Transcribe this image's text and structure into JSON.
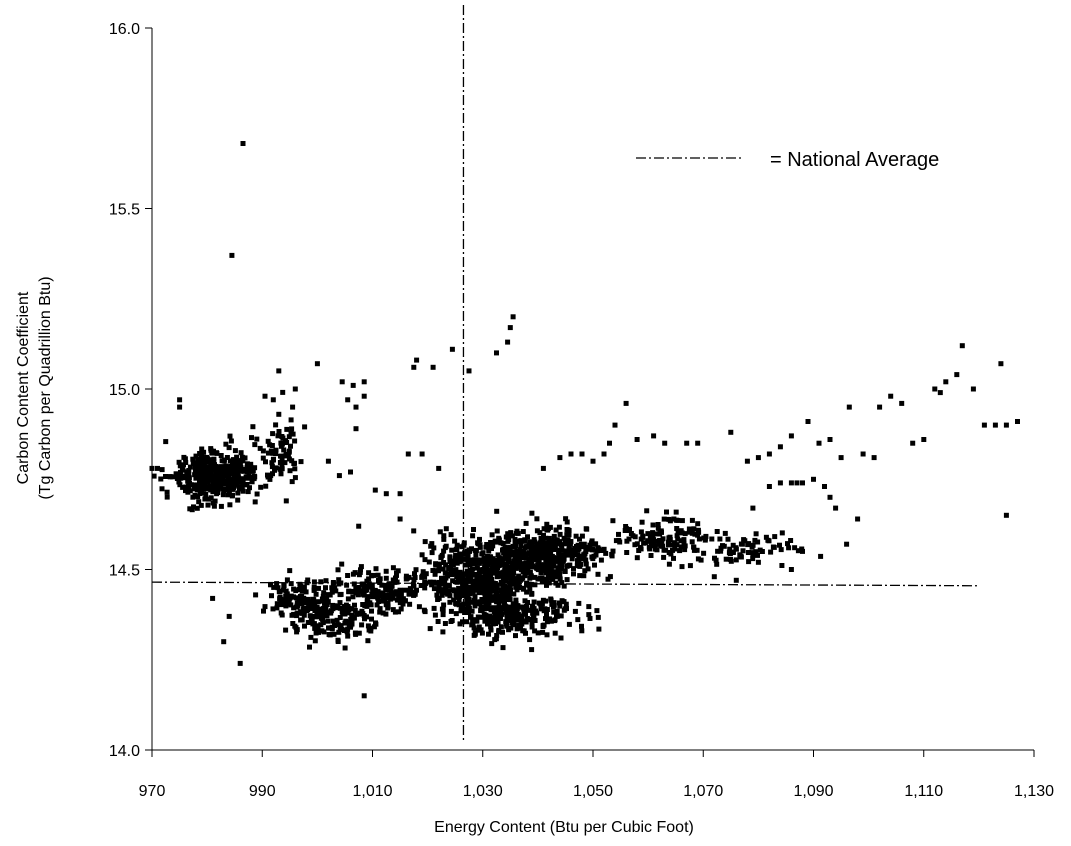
{
  "chart_data": {
    "type": "scatter",
    "xlabel": "Energy Content (Btu per Cubic Foot)",
    "ylabel": [
      "Carbon Content Coefficient",
      "(Tg Carbon per Quadrillion Btu)"
    ],
    "xlim": [
      970,
      1130
    ],
    "ylim": [
      14.0,
      16.0
    ],
    "x_ticks": [
      970,
      990,
      1010,
      1030,
      1050,
      1070,
      1090,
      1110,
      1130
    ],
    "x_tick_labels": [
      "970",
      "990",
      "1,010",
      "1,030",
      "1,050",
      "1,070",
      "1,090",
      "1,110",
      "1,130"
    ],
    "y_ticks": [
      14.0,
      14.5,
      15.0,
      15.5,
      16.0
    ],
    "y_tick_labels": [
      "14.0",
      "14.5",
      "15.0",
      "15.5",
      "16.0"
    ],
    "grid": false,
    "legend": {
      "position": "top-right",
      "entries": [
        {
          "label": "= National Average",
          "style": "dash-dot"
        }
      ]
    },
    "reference_lines": {
      "vertical_x": 1026.5,
      "horizontal": {
        "x_start": 970,
        "x_end": 1120,
        "y_start": 14.465,
        "y_end": 14.455
      }
    },
    "series": [
      {
        "marker": "square",
        "color": "#000000",
        "points": [
          [
            986.5,
            15.68
          ],
          [
            984.5,
            15.37
          ],
          [
            1035.5,
            15.2
          ],
          [
            1035,
            15.17
          ],
          [
            1034.5,
            15.13
          ],
          [
            1032.5,
            15.1
          ],
          [
            1024.5,
            15.11
          ],
          [
            1027.5,
            15.05
          ],
          [
            1017.5,
            15.06
          ],
          [
            1018,
            15.08
          ],
          [
            1021,
            15.06
          ],
          [
            1000,
            15.07
          ],
          [
            993,
            15.05
          ],
          [
            995.5,
            14.95
          ],
          [
            996,
            15.0
          ],
          [
            993,
            14.93
          ],
          [
            992,
            14.97
          ],
          [
            990.5,
            14.98
          ],
          [
            1004.5,
            15.02
          ],
          [
            1006.5,
            15.01
          ],
          [
            1008.5,
            15.02
          ],
          [
            1008.5,
            14.98
          ],
          [
            1005.5,
            14.97
          ],
          [
            1007,
            14.95
          ],
          [
            1007,
            14.89
          ],
          [
            975,
            14.97
          ],
          [
            975,
            14.95
          ],
          [
            1002,
            14.8
          ],
          [
            1004,
            14.76
          ],
          [
            1006,
            14.77
          ],
          [
            1010.5,
            14.72
          ],
          [
            1012.5,
            14.71
          ],
          [
            1015,
            14.71
          ],
          [
            1007.5,
            14.62
          ],
          [
            1016.5,
            14.82
          ],
          [
            1019,
            14.82
          ],
          [
            1015,
            14.64
          ],
          [
            1022,
            14.78
          ],
          [
            1041,
            14.78
          ],
          [
            1044,
            14.81
          ],
          [
            1046,
            14.82
          ],
          [
            1048,
            14.82
          ],
          [
            1050,
            14.8
          ],
          [
            1052,
            14.82
          ],
          [
            1053,
            14.85
          ],
          [
            1054,
            14.9
          ],
          [
            1056,
            14.96
          ],
          [
            1058,
            14.86
          ],
          [
            1061,
            14.87
          ],
          [
            1063,
            14.85
          ],
          [
            1067,
            14.85
          ],
          [
            1069,
            14.85
          ],
          [
            1075,
            14.88
          ],
          [
            1078,
            14.8
          ],
          [
            1080,
            14.81
          ],
          [
            1082,
            14.82
          ],
          [
            1084,
            14.84
          ],
          [
            1086,
            14.87
          ],
          [
            1089,
            14.91
          ],
          [
            1091,
            14.85
          ],
          [
            1093,
            14.86
          ],
          [
            1095,
            14.81
          ],
          [
            1096.5,
            14.95
          ],
          [
            1099,
            14.82
          ],
          [
            1101,
            14.81
          ],
          [
            1102,
            14.95
          ],
          [
            1104,
            14.98
          ],
          [
            1106,
            14.96
          ],
          [
            1108,
            14.85
          ],
          [
            1110,
            14.86
          ],
          [
            1112,
            15.0
          ],
          [
            1113,
            14.99
          ],
          [
            1114,
            15.02
          ],
          [
            1116,
            15.04
          ],
          [
            1117,
            15.12
          ],
          [
            1119,
            15.0
          ],
          [
            1121,
            14.9
          ],
          [
            1123,
            14.9
          ],
          [
            1124,
            15.07
          ],
          [
            1125,
            14.9
          ],
          [
            1127,
            14.91
          ],
          [
            1125,
            14.65
          ],
          [
            1082,
            14.73
          ],
          [
            1084,
            14.74
          ],
          [
            1086,
            14.74
          ],
          [
            1087,
            14.74
          ],
          [
            1088,
            14.74
          ],
          [
            1090,
            14.75
          ],
          [
            1092,
            14.73
          ],
          [
            1093,
            14.7
          ],
          [
            1094,
            14.67
          ],
          [
            1096,
            14.57
          ],
          [
            1098,
            14.64
          ],
          [
            1088,
            14.55
          ],
          [
            1086,
            14.5
          ],
          [
            1072,
            14.48
          ],
          [
            1076,
            14.47
          ],
          [
            1080,
            14.52
          ],
          [
            1074,
            14.6
          ],
          [
            1079,
            14.67
          ],
          [
            984,
            14.37
          ],
          [
            983,
            14.3
          ],
          [
            986,
            14.24
          ],
          [
            981,
            14.42
          ],
          [
            1008.5,
            14.15
          ],
          [
            970,
            14.78
          ],
          [
            971,
            14.78
          ]
        ],
        "clusters": [
          {
            "center": [
              982,
              14.76
            ],
            "spread": [
              5.5,
              0.05
            ],
            "count": 420,
            "seed": 11
          },
          {
            "center": [
              994,
              14.82
            ],
            "spread": [
              2.5,
              0.06
            ],
            "count": 60,
            "seed": 12
          },
          {
            "center": [
              1030,
              14.47
            ],
            "spread": [
              7,
              0.08
            ],
            "count": 650,
            "seed": 13
          },
          {
            "center": [
              1042,
              14.54
            ],
            "spread": [
              7,
              0.05
            ],
            "count": 420,
            "seed": 14
          },
          {
            "center": [
              1012,
              14.44
            ],
            "spread": [
              6.5,
              0.04
            ],
            "count": 170,
            "seed": 15
          },
          {
            "center": [
              1003,
              14.37
            ],
            "spread": [
              5.5,
              0.04
            ],
            "count": 170,
            "seed": 16
          },
          {
            "center": [
              1036,
              14.37
            ],
            "spread": [
              7.5,
              0.04
            ],
            "count": 200,
            "seed": 17
          },
          {
            "center": [
              1063,
              14.58
            ],
            "spread": [
              5.5,
              0.04
            ],
            "count": 130,
            "seed": 18
          },
          {
            "center": [
              1079,
              14.56
            ],
            "spread": [
              6,
              0.03
            ],
            "count": 70,
            "seed": 19
          },
          {
            "center": [
              996,
              14.42
            ],
            "spread": [
              4,
              0.04
            ],
            "count": 90,
            "seed": 20
          }
        ]
      }
    ]
  }
}
